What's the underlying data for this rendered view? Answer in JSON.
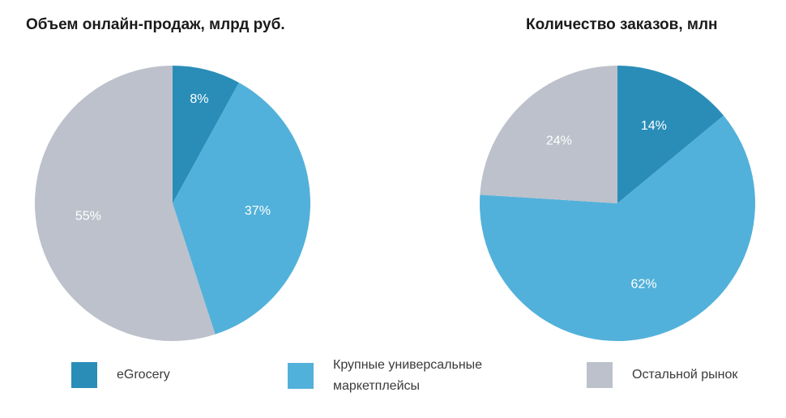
{
  "colors": {
    "egrocery": "#2a8db8",
    "marketplaces": "#52b1da",
    "rest": "#bcc1cb"
  },
  "legend": [
    {
      "label": "eGrocery",
      "color_key": "egrocery"
    },
    {
      "label": "Крупные универсальные маркетплейсы",
      "color_key": "marketplaces"
    },
    {
      "label": "Остальной рынок",
      "color_key": "rest"
    }
  ],
  "chart_data": [
    {
      "type": "pie",
      "title": "Объем онлайн-продаж, млрд руб.",
      "categories": [
        "eGrocery",
        "Крупные универсальные маркетплейсы",
        "Остальной рынок"
      ],
      "values": [
        8,
        37,
        55
      ],
      "labels": [
        "8%",
        "37%",
        "55%"
      ]
    },
    {
      "type": "pie",
      "title": "Количество заказов, млн",
      "categories": [
        "eGrocery",
        "Крупные универсальные маркетплейсы",
        "Остальной рынок"
      ],
      "values": [
        14,
        62,
        24
      ],
      "labels": [
        "14%",
        "62%",
        "24%"
      ]
    }
  ]
}
